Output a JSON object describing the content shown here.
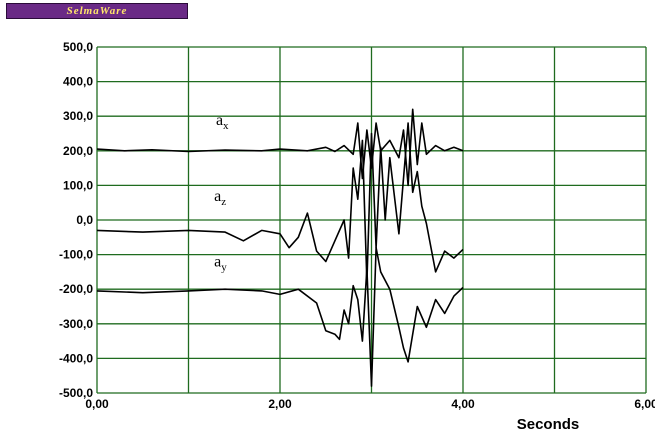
{
  "logo": {
    "text": "SelmaWare"
  },
  "chart_data": {
    "type": "line",
    "title": "",
    "xlabel": "Seconds",
    "ylabel": "",
    "xlim": [
      0,
      6
    ],
    "ylim": [
      -500,
      500
    ],
    "grid": true,
    "x_ticks": [
      0,
      1,
      2,
      3,
      4,
      5,
      6
    ],
    "x_tick_labels": [
      "0,00",
      "",
      "2,00",
      "",
      "4,00",
      "",
      "6,00"
    ],
    "y_ticks": [
      500,
      400,
      300,
      200,
      100,
      0,
      -100,
      -200,
      -300,
      -400,
      -500
    ],
    "y_tick_labels": [
      "500,0",
      "400,0",
      "300,0",
      "200,0",
      "100,0",
      "0,0",
      "-100,0",
      "-200,0",
      "-300,0",
      "-400,0",
      "-500,0"
    ],
    "line_color": "#000000",
    "grid_color": "#1f6b1f",
    "series": [
      {
        "name": "ax",
        "x": [
          0.0,
          0.3,
          0.6,
          1.0,
          1.4,
          1.8,
          2.0,
          2.3,
          2.5,
          2.6,
          2.7,
          2.8,
          2.85,
          2.9,
          2.95,
          3.0,
          3.05,
          3.1,
          3.2,
          3.3,
          3.35,
          3.4,
          3.45,
          3.5,
          3.55,
          3.6,
          3.7,
          3.8,
          3.9,
          4.0
        ],
        "y": [
          205,
          200,
          203,
          198,
          202,
          200,
          205,
          200,
          210,
          198,
          215,
          190,
          280,
          120,
          260,
          150,
          280,
          200,
          230,
          180,
          260,
          100,
          320,
          160,
          280,
          190,
          215,
          200,
          210,
          200
        ]
      },
      {
        "name": "az",
        "x": [
          0.0,
          0.5,
          1.0,
          1.4,
          1.6,
          1.8,
          2.0,
          2.1,
          2.2,
          2.3,
          2.4,
          2.5,
          2.6,
          2.7,
          2.75,
          2.8,
          2.85,
          2.9,
          2.95,
          3.0,
          3.05,
          3.1,
          3.15,
          3.2,
          3.3,
          3.4,
          3.45,
          3.5,
          3.55,
          3.6,
          3.7,
          3.8,
          3.9,
          4.0
        ],
        "y": [
          -30,
          -35,
          -30,
          -35,
          -60,
          -30,
          -40,
          -80,
          -50,
          20,
          -90,
          -120,
          -60,
          0,
          -110,
          150,
          60,
          230,
          -180,
          250,
          -80,
          210,
          0,
          180,
          -40,
          280,
          80,
          140,
          40,
          -10,
          -150,
          -90,
          -110,
          -85
        ]
      },
      {
        "name": "ay",
        "x": [
          0.0,
          0.5,
          1.0,
          1.4,
          1.8,
          2.0,
          2.2,
          2.4,
          2.5,
          2.6,
          2.65,
          2.7,
          2.75,
          2.8,
          2.85,
          2.9,
          2.95,
          3.0,
          3.05,
          3.1,
          3.2,
          3.3,
          3.35,
          3.4,
          3.5,
          3.6,
          3.7,
          3.8,
          3.9,
          4.0
        ],
        "y": [
          -205,
          -210,
          -205,
          -200,
          -205,
          -215,
          -200,
          -240,
          -320,
          -330,
          -345,
          -260,
          -300,
          -190,
          -230,
          -350,
          -140,
          -480,
          -80,
          -150,
          -200,
          -310,
          -370,
          -410,
          -250,
          -310,
          -230,
          -270,
          -220,
          -195
        ]
      }
    ]
  }
}
